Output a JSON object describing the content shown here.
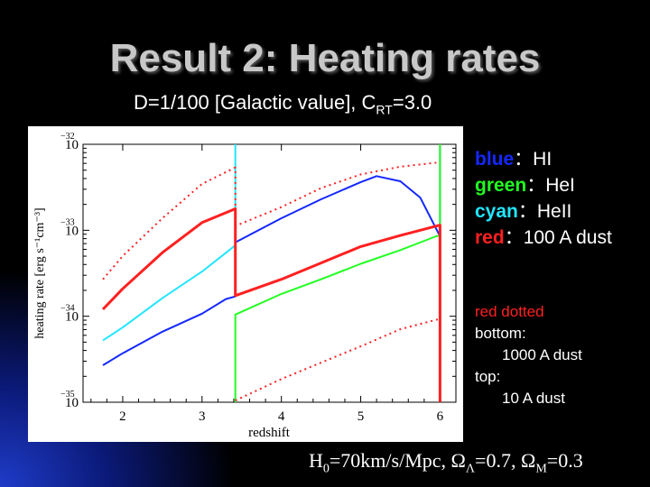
{
  "slide": {
    "title": "Result 2: Heating rates",
    "subtitle": {
      "main": "D=1/100 [Galactic value], C",
      "sub": "RT",
      "tail": "=3.0"
    },
    "params": {
      "h0_sym": "H",
      "h0_sub": "0",
      "h0_val": "=70km/s/Mpc, ",
      "ol_sym": "Ω",
      "ol_sub": "Λ",
      "ol_val": "=0.7, ",
      "om_sym": "Ω",
      "om_sub": "M",
      "om_val": "=0.3"
    }
  },
  "legend": [
    {
      "key": "blue",
      "sep": "：",
      "desc": "HI",
      "color": "#1428ff"
    },
    {
      "key": "green",
      "sep": "：",
      "desc": "HeI",
      "color": "#22ff22"
    },
    {
      "key": "cyan",
      "sep": "：",
      "desc": "HeII",
      "color": "#22e6ff"
    },
    {
      "key": "red",
      "sep": "：",
      "desc": "100 A dust",
      "color": "#ff2020"
    }
  ],
  "notes": {
    "heading": "red dotted",
    "heading_color": "#ff2020",
    "bottom_label": "bottom:",
    "bottom_value": "1000 A dust",
    "top_label": "top:",
    "top_value": "10 A dust"
  },
  "chart_data": {
    "type": "line",
    "xlabel": "redshift",
    "ylabel": "heating rate [erg s⁻¹cm⁻³]",
    "xlim": [
      1.5,
      6.2
    ],
    "ylim_log10": [
      -35,
      -32
    ],
    "xticks": [
      "2",
      "3",
      "4",
      "5",
      "6"
    ],
    "yticks": [
      {
        "base": "10",
        "exp": "−32",
        "log": -32
      },
      {
        "base": "10",
        "exp": "−33",
        "log": -33
      },
      {
        "base": "10",
        "exp": "−34",
        "log": -34
      },
      {
        "base": "10",
        "exp": "−35",
        "log": -35
      }
    ],
    "series": [
      {
        "name": "HI",
        "color": "#1428ff",
        "width": 2,
        "dash": "",
        "points": [
          [
            1.75,
            -34.57
          ],
          [
            2.0,
            -34.43
          ],
          [
            2.5,
            -34.18
          ],
          [
            3.0,
            -33.97
          ],
          [
            3.3,
            -33.8
          ],
          [
            3.42,
            -33.77
          ],
          [
            3.42,
            -33.14
          ],
          [
            4.0,
            -32.86
          ],
          [
            4.5,
            -32.64
          ],
          [
            5.0,
            -32.44
          ],
          [
            5.2,
            -32.37
          ],
          [
            5.5,
            -32.43
          ],
          [
            5.75,
            -32.62
          ],
          [
            6.0,
            -33.07
          ],
          [
            6.0,
            -32.0
          ]
        ]
      },
      {
        "name": "HeI",
        "color": "#22ff22",
        "width": 2,
        "dash": "",
        "points": [
          [
            3.42,
            -35.0
          ],
          [
            3.42,
            -33.98
          ],
          [
            4.0,
            -33.74
          ],
          [
            4.5,
            -33.57
          ],
          [
            5.0,
            -33.39
          ],
          [
            5.5,
            -33.23
          ],
          [
            5.95,
            -33.07
          ],
          [
            6.0,
            -33.06
          ],
          [
            6.0,
            -32.0
          ]
        ]
      },
      {
        "name": "HeII",
        "color": "#22e6ff",
        "width": 2,
        "dash": "",
        "points": [
          [
            1.75,
            -34.28
          ],
          [
            2.0,
            -34.13
          ],
          [
            2.5,
            -33.79
          ],
          [
            3.0,
            -33.48
          ],
          [
            3.4,
            -33.19
          ],
          [
            3.42,
            -33.17
          ],
          [
            3.42,
            -32.0
          ]
        ]
      },
      {
        "name": "100 A dust",
        "color": "#ff2020",
        "width": 3,
        "dash": "",
        "points": [
          [
            1.75,
            -33.92
          ],
          [
            2.0,
            -33.68
          ],
          [
            2.5,
            -33.26
          ],
          [
            3.0,
            -32.91
          ],
          [
            3.42,
            -32.75
          ],
          [
            3.42,
            -33.76
          ],
          [
            4.0,
            -33.57
          ],
          [
            4.5,
            -33.38
          ],
          [
            5.0,
            -33.19
          ],
          [
            5.5,
            -33.06
          ],
          [
            6.0,
            -32.94
          ],
          [
            6.0,
            -35.0
          ]
        ]
      },
      {
        "name": "10 A dust",
        "color": "#ff2020",
        "width": 2,
        "dash": "2,4",
        "points": [
          [
            1.75,
            -33.57
          ],
          [
            2.0,
            -33.3
          ],
          [
            2.5,
            -32.86
          ],
          [
            3.0,
            -32.46
          ],
          [
            3.42,
            -32.27
          ],
          [
            3.42,
            -32.95
          ],
          [
            4.0,
            -32.73
          ],
          [
            4.5,
            -32.51
          ],
          [
            5.0,
            -32.35
          ],
          [
            5.5,
            -32.26
          ],
          [
            6.0,
            -32.21
          ]
        ]
      },
      {
        "name": "1000 A dust",
        "color": "#ff2020",
        "width": 2,
        "dash": "2,4",
        "points": [
          [
            3.42,
            -34.98
          ],
          [
            4.0,
            -34.73
          ],
          [
            4.5,
            -34.54
          ],
          [
            5.0,
            -34.35
          ],
          [
            5.5,
            -34.15
          ],
          [
            6.0,
            -34.03
          ]
        ]
      }
    ]
  }
}
